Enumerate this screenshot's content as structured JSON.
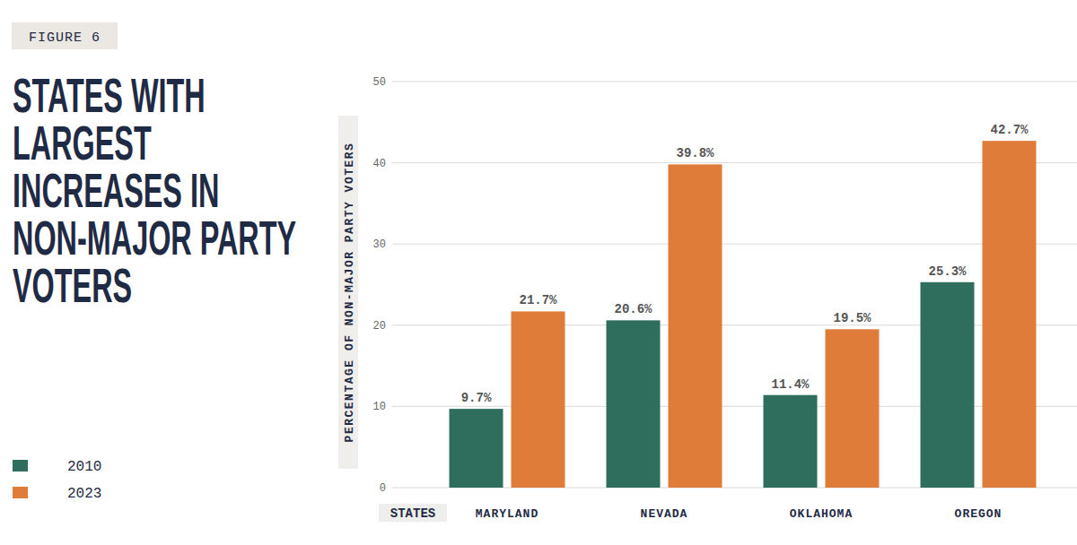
{
  "chart_data": {
    "type": "bar",
    "annotation": "FIGURE 6",
    "title": "STATES WITH LARGEST INCREASES IN NON-MAJOR PARTY VOTERS",
    "x_label": "STATES",
    "y_label": "PERCENTAGE OF NON-MAJOR PARTY VOTERS",
    "categories": [
      "MARYLAND",
      "NEVADA",
      "OKLAHOMA",
      "OREGON"
    ],
    "series": [
      {
        "name": "2010",
        "color": "#2f6e5c",
        "values": [
          9.7,
          20.6,
          11.4,
          25.3
        ],
        "value_labels": [
          "9.7%",
          "20.6%",
          "11.4%",
          "25.3%"
        ]
      },
      {
        "name": "2023",
        "color": "#e07c3a",
        "values": [
          21.7,
          39.8,
          19.5,
          42.7
        ],
        "value_labels": [
          "21.7%",
          "39.8%",
          "19.5%",
          "42.7%"
        ]
      }
    ],
    "ylim": [
      0,
      50
    ],
    "yticks": [
      0,
      10,
      20,
      30,
      40,
      50
    ],
    "grid": true,
    "data_labels": true,
    "legend": "bottom-left"
  }
}
